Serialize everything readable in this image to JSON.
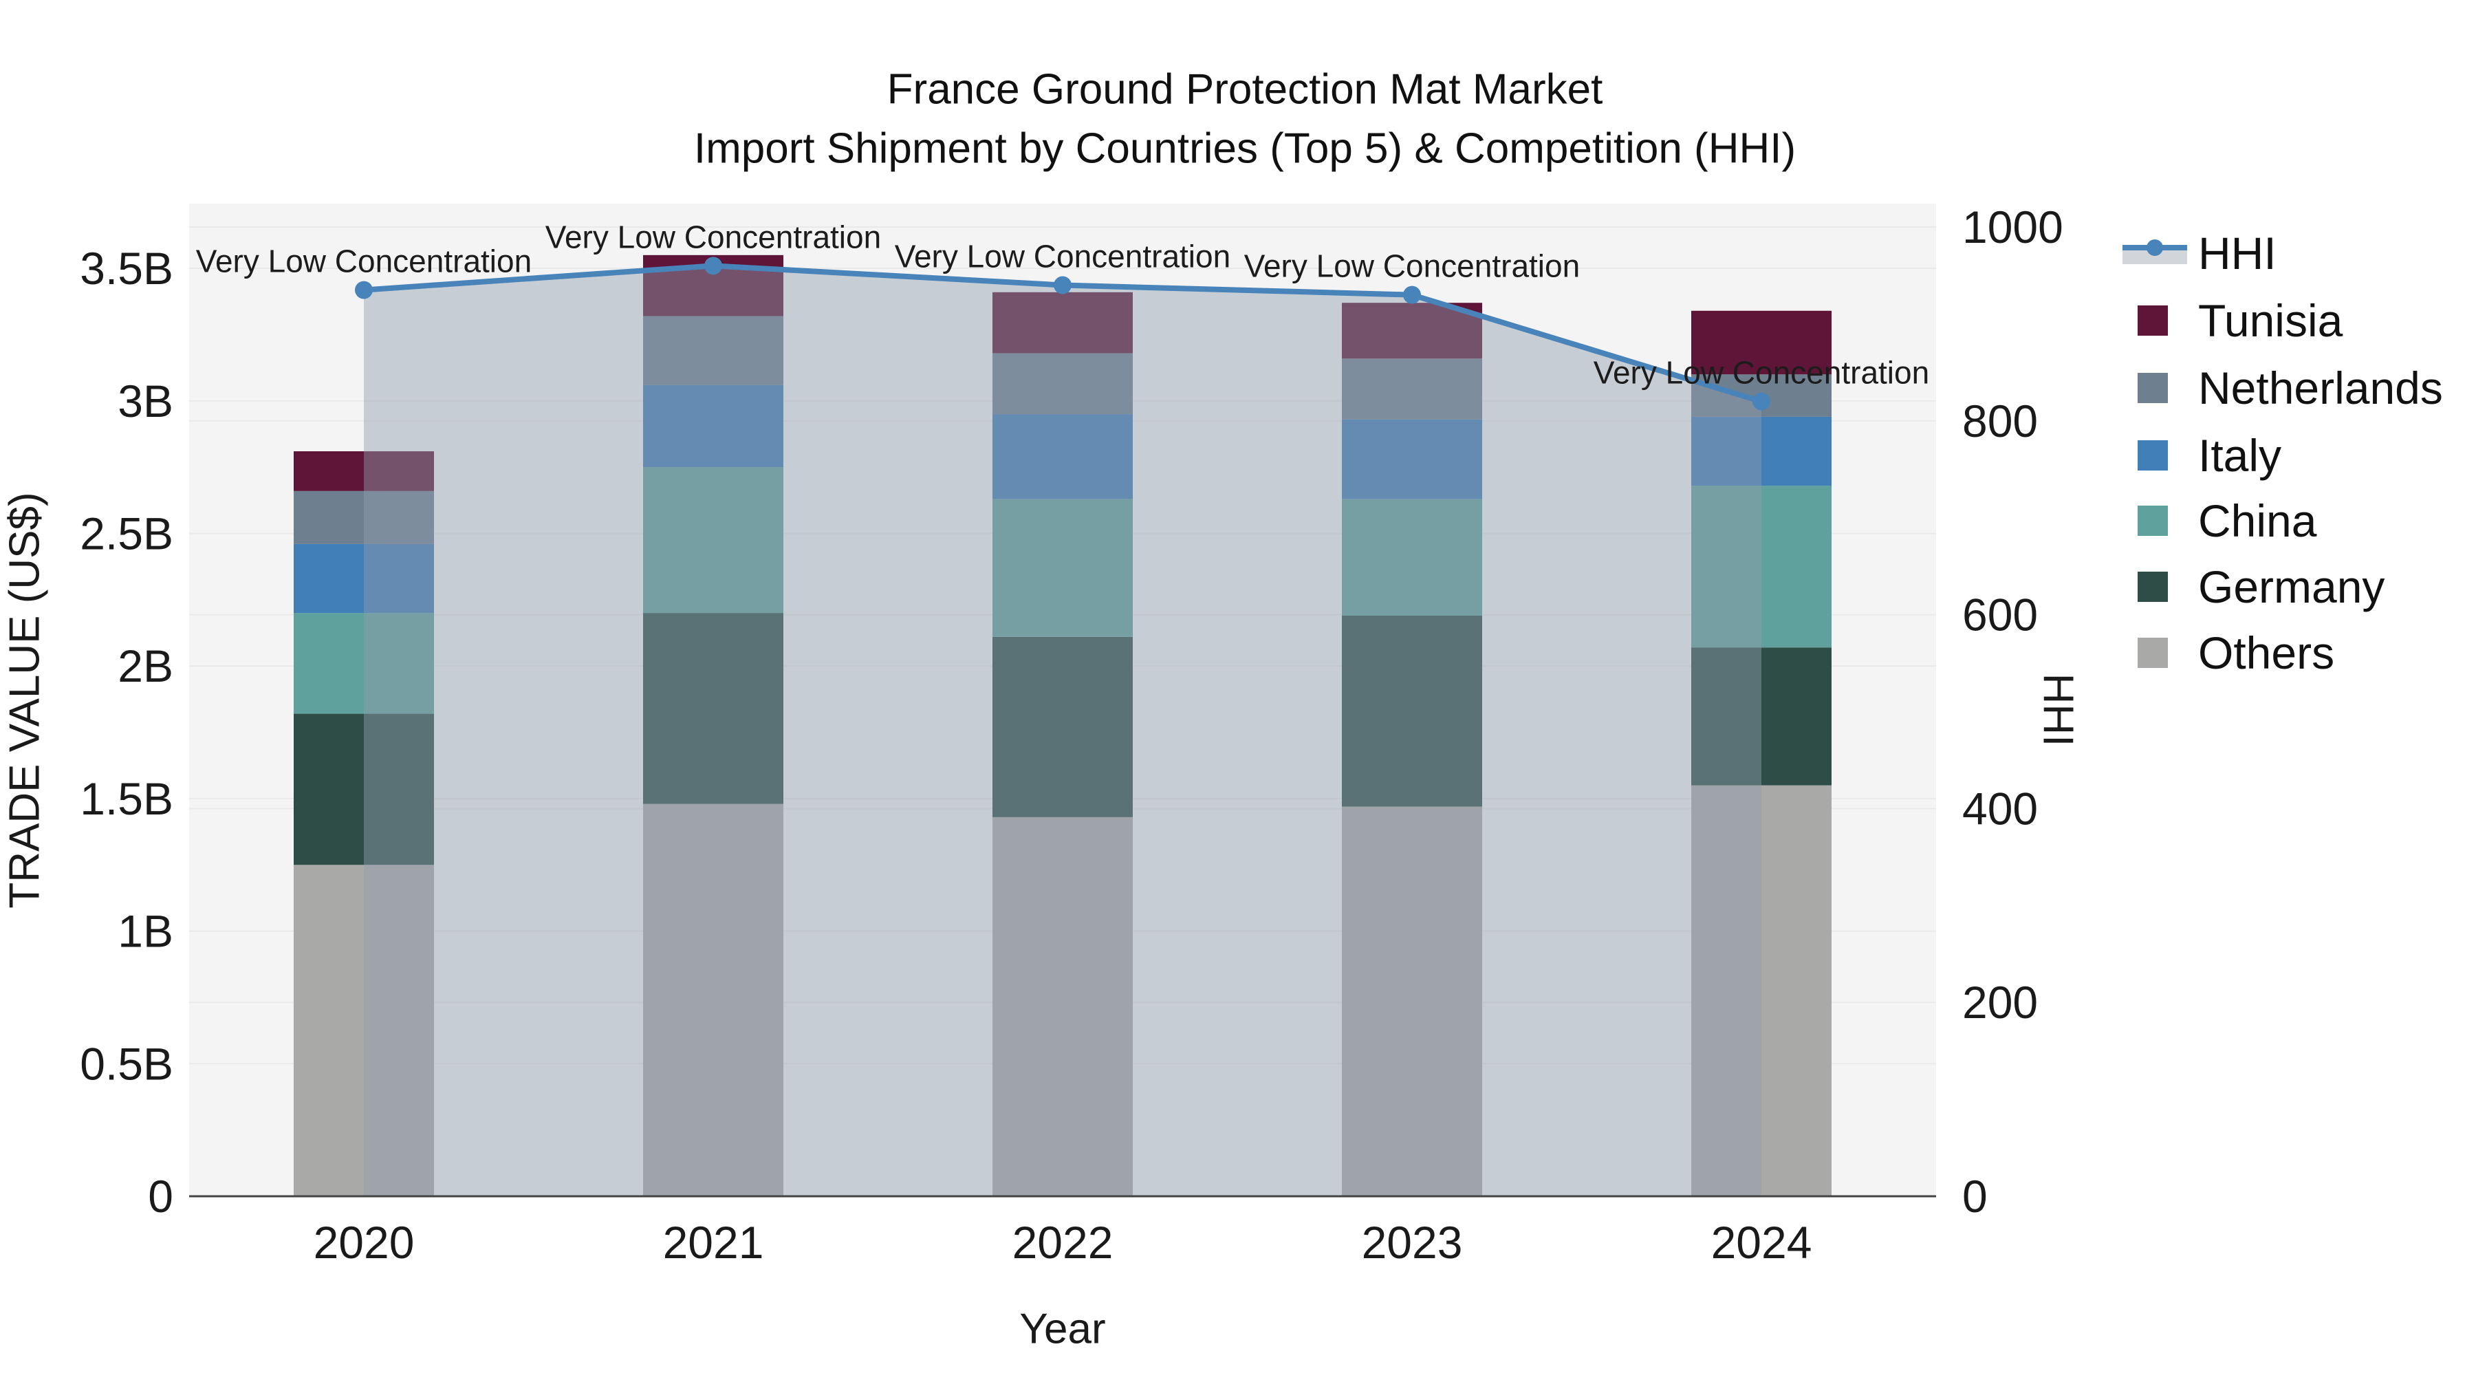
{
  "title": {
    "line1": "France Ground Protection Mat Market",
    "line2": "Import Shipment by Countries (Top 5) & Competition (HHI)"
  },
  "axes": {
    "x": {
      "title": "Year",
      "tick_labels": [
        "2020",
        "2021",
        "2022",
        "2023",
        "2024"
      ]
    },
    "y_left": {
      "title": "TRADE VALUE (US$)",
      "tick_labels": [
        "0",
        "0.5B",
        "1B",
        "1.5B",
        "2B",
        "2.5B",
        "3B",
        "3.5B"
      ],
      "tick_values": [
        0,
        0.5,
        1,
        1.5,
        2,
        2.5,
        3,
        3.5
      ]
    },
    "y_right": {
      "title": "HHI",
      "tick_labels": [
        "0",
        "200",
        "400",
        "600",
        "800",
        "1000"
      ],
      "tick_values": [
        0,
        200,
        400,
        600,
        800,
        1000
      ]
    }
  },
  "legend": {
    "items": [
      {
        "label": "HHI",
        "type": "line",
        "color": "#4884ba",
        "fill": "#d2d5da"
      },
      {
        "label": "Tunisia",
        "type": "square",
        "color": "#5f1537"
      },
      {
        "label": "Netherlands",
        "type": "square",
        "color": "#6e8090"
      },
      {
        "label": "Italy",
        "type": "square",
        "color": "#417fb9"
      },
      {
        "label": "China",
        "type": "square",
        "color": "#5fa19c"
      },
      {
        "label": "Germany",
        "type": "square",
        "color": "#2f4d47"
      },
      {
        "label": "Others",
        "type": "square",
        "color": "#a9aaa8"
      }
    ]
  },
  "chart_data": {
    "type": "bar",
    "subtype": "stacked-bars-with-line",
    "categories": [
      "2020",
      "2021",
      "2022",
      "2023",
      "2024"
    ],
    "unit": "billion US$",
    "series": [
      {
        "name": "Others",
        "color": "#a9aaa8",
        "values": [
          1.25,
          1.48,
          1.43,
          1.47,
          1.55
        ]
      },
      {
        "name": "Germany",
        "color": "#2f4d47",
        "values": [
          0.57,
          0.72,
          0.68,
          0.72,
          0.52
        ]
      },
      {
        "name": "China",
        "color": "#5fa19c",
        "values": [
          0.38,
          0.55,
          0.52,
          0.44,
          0.61
        ]
      },
      {
        "name": "Italy",
        "color": "#417fb9",
        "values": [
          0.26,
          0.31,
          0.32,
          0.3,
          0.26
        ]
      },
      {
        "name": "Netherlands",
        "color": "#6e8090",
        "values": [
          0.2,
          0.26,
          0.23,
          0.23,
          0.16
        ]
      },
      {
        "name": "Tunisia",
        "color": "#5f1537",
        "values": [
          0.15,
          0.23,
          0.23,
          0.21,
          0.24
        ]
      }
    ],
    "totals": [
      2.81,
      3.55,
      3.41,
      3.37,
      3.34
    ],
    "hhi_line": {
      "name": "HHI",
      "values": [
        935,
        960,
        940,
        930,
        820
      ],
      "line_color": "#4884ba",
      "area_fill": "rgba(145,157,172,0.45)"
    },
    "annotations": [
      {
        "x": "2020",
        "text": "Very Low Concentration"
      },
      {
        "x": "2021",
        "text": "Very Low Concentration"
      },
      {
        "x": "2022",
        "text": "Very Low Concentration"
      },
      {
        "x": "2023",
        "text": "Very Low Concentration"
      },
      {
        "x": "2024",
        "text": "Very Low Concentration"
      }
    ],
    "title": "France Ground Protection Mat Market — Import Shipment by Countries (Top 5) & Competition (HHI)",
    "xlabel": "Year",
    "ylabel_left": "TRADE VALUE (US$)",
    "ylabel_right": "HHI",
    "ylim_left": [
      0,
      3.74
    ],
    "ylim_right": [
      0,
      1024
    ],
    "grid": true,
    "legend_position": "right"
  },
  "colors": {
    "plot_bg": "#f4f4f4",
    "gridline": "#e9e9e9",
    "axis_line": "#444444",
    "text": "#1a1a1a",
    "annotation_text": "#1c1c1c"
  }
}
